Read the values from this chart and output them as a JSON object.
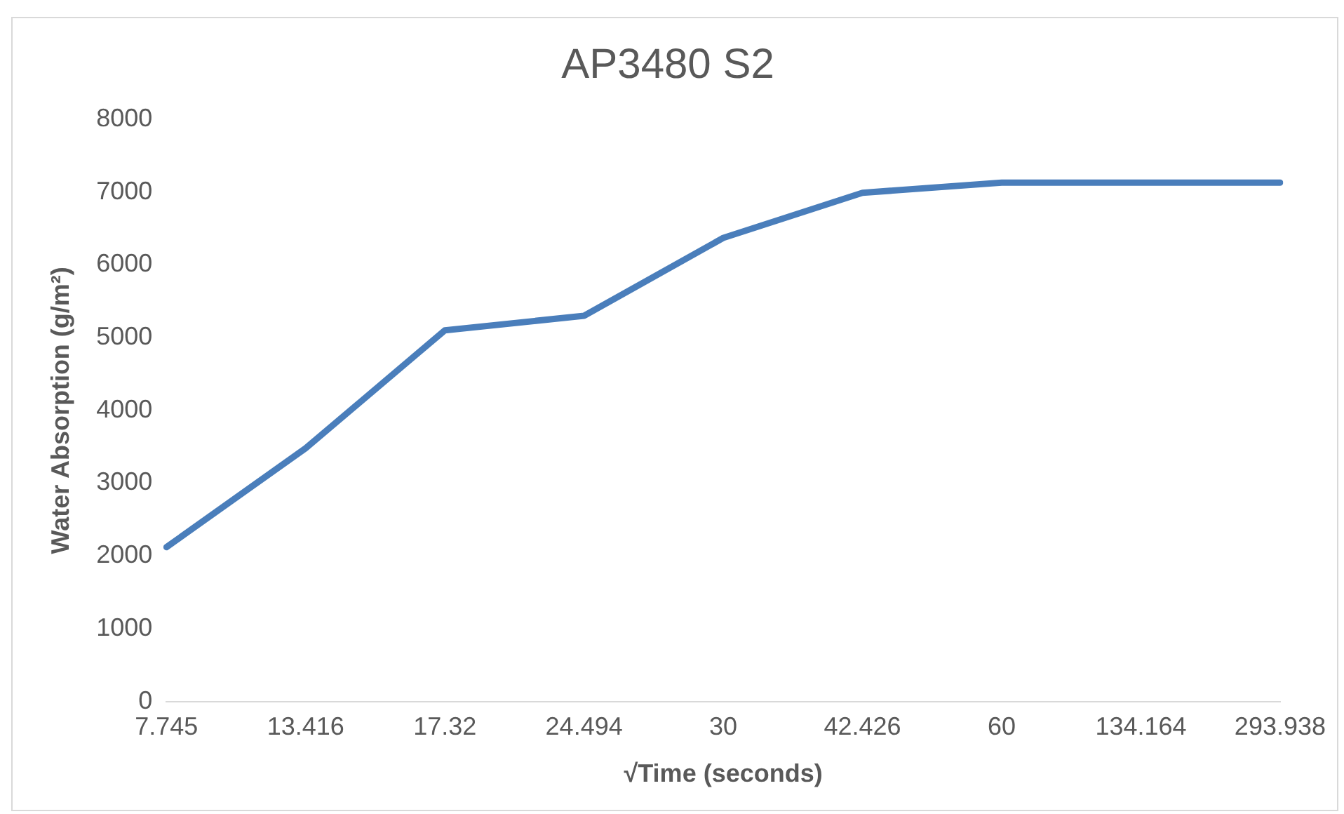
{
  "chart_data": {
    "type": "line",
    "title": "AP3480 S2",
    "xlabel": "√Time (seconds)",
    "ylabel": "Water Absorption (g/m²)",
    "categories": [
      "7.745",
      "13.416",
      "17.32",
      "24.494",
      "30",
      "42.426",
      "60",
      "134.164",
      "293.938"
    ],
    "series": [
      {
        "color": "#4a7ebb",
        "values": [
          2120,
          3480,
          5100,
          5300,
          6370,
          6990,
          7130,
          7130,
          7130
        ]
      }
    ],
    "ylim": [
      0,
      8000
    ],
    "yticks": [
      0,
      1000,
      2000,
      3000,
      4000,
      5000,
      6000,
      7000,
      8000
    ],
    "grid": false,
    "legend": false,
    "marker": "none",
    "line_style": "solid"
  }
}
